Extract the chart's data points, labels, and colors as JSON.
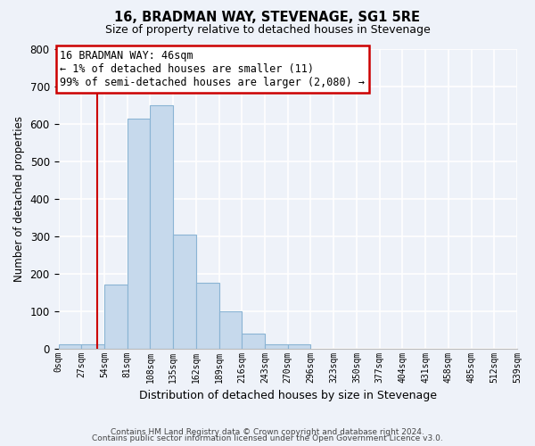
{
  "title": "16, BRADMAN WAY, STEVENAGE, SG1 5RE",
  "subtitle": "Size of property relative to detached houses in Stevenage",
  "xlabel": "Distribution of detached houses by size in Stevenage",
  "ylabel": "Number of detached properties",
  "bar_color": "#c6d9ec",
  "bar_edge_color": "#8ab4d4",
  "bin_edges": [
    0,
    27,
    54,
    81,
    108,
    135,
    162,
    189,
    216,
    243,
    270,
    297,
    324,
    351,
    378,
    405,
    432,
    459,
    486,
    513,
    540
  ],
  "bin_labels": [
    "0sqm",
    "27sqm",
    "54sqm",
    "81sqm",
    "108sqm",
    "135sqm",
    "162sqm",
    "189sqm",
    "216sqm",
    "243sqm",
    "270sqm",
    "296sqm",
    "323sqm",
    "350sqm",
    "377sqm",
    "404sqm",
    "431sqm",
    "458sqm",
    "485sqm",
    "512sqm",
    "539sqm"
  ],
  "bar_heights": [
    10,
    10,
    170,
    615,
    650,
    305,
    175,
    100,
    40,
    10,
    10,
    0,
    0,
    0,
    0,
    0,
    0,
    0,
    0,
    0
  ],
  "ylim": [
    0,
    800
  ],
  "yticks": [
    0,
    100,
    200,
    300,
    400,
    500,
    600,
    700,
    800
  ],
  "property_line_x": 46,
  "property_line_color": "#cc0000",
  "annotation_line1": "16 BRADMAN WAY: 46sqm",
  "annotation_line2": "← 1% of detached houses are smaller (11)",
  "annotation_line3": "99% of semi-detached houses are larger (2,080) →",
  "annotation_box_color": "#ffffff",
  "annotation_box_edge_color": "#cc0000",
  "footer1": "Contains HM Land Registry data © Crown copyright and database right 2024.",
  "footer2": "Contains public sector information licensed under the Open Government Licence v3.0.",
  "background_color": "#eef2f9"
}
